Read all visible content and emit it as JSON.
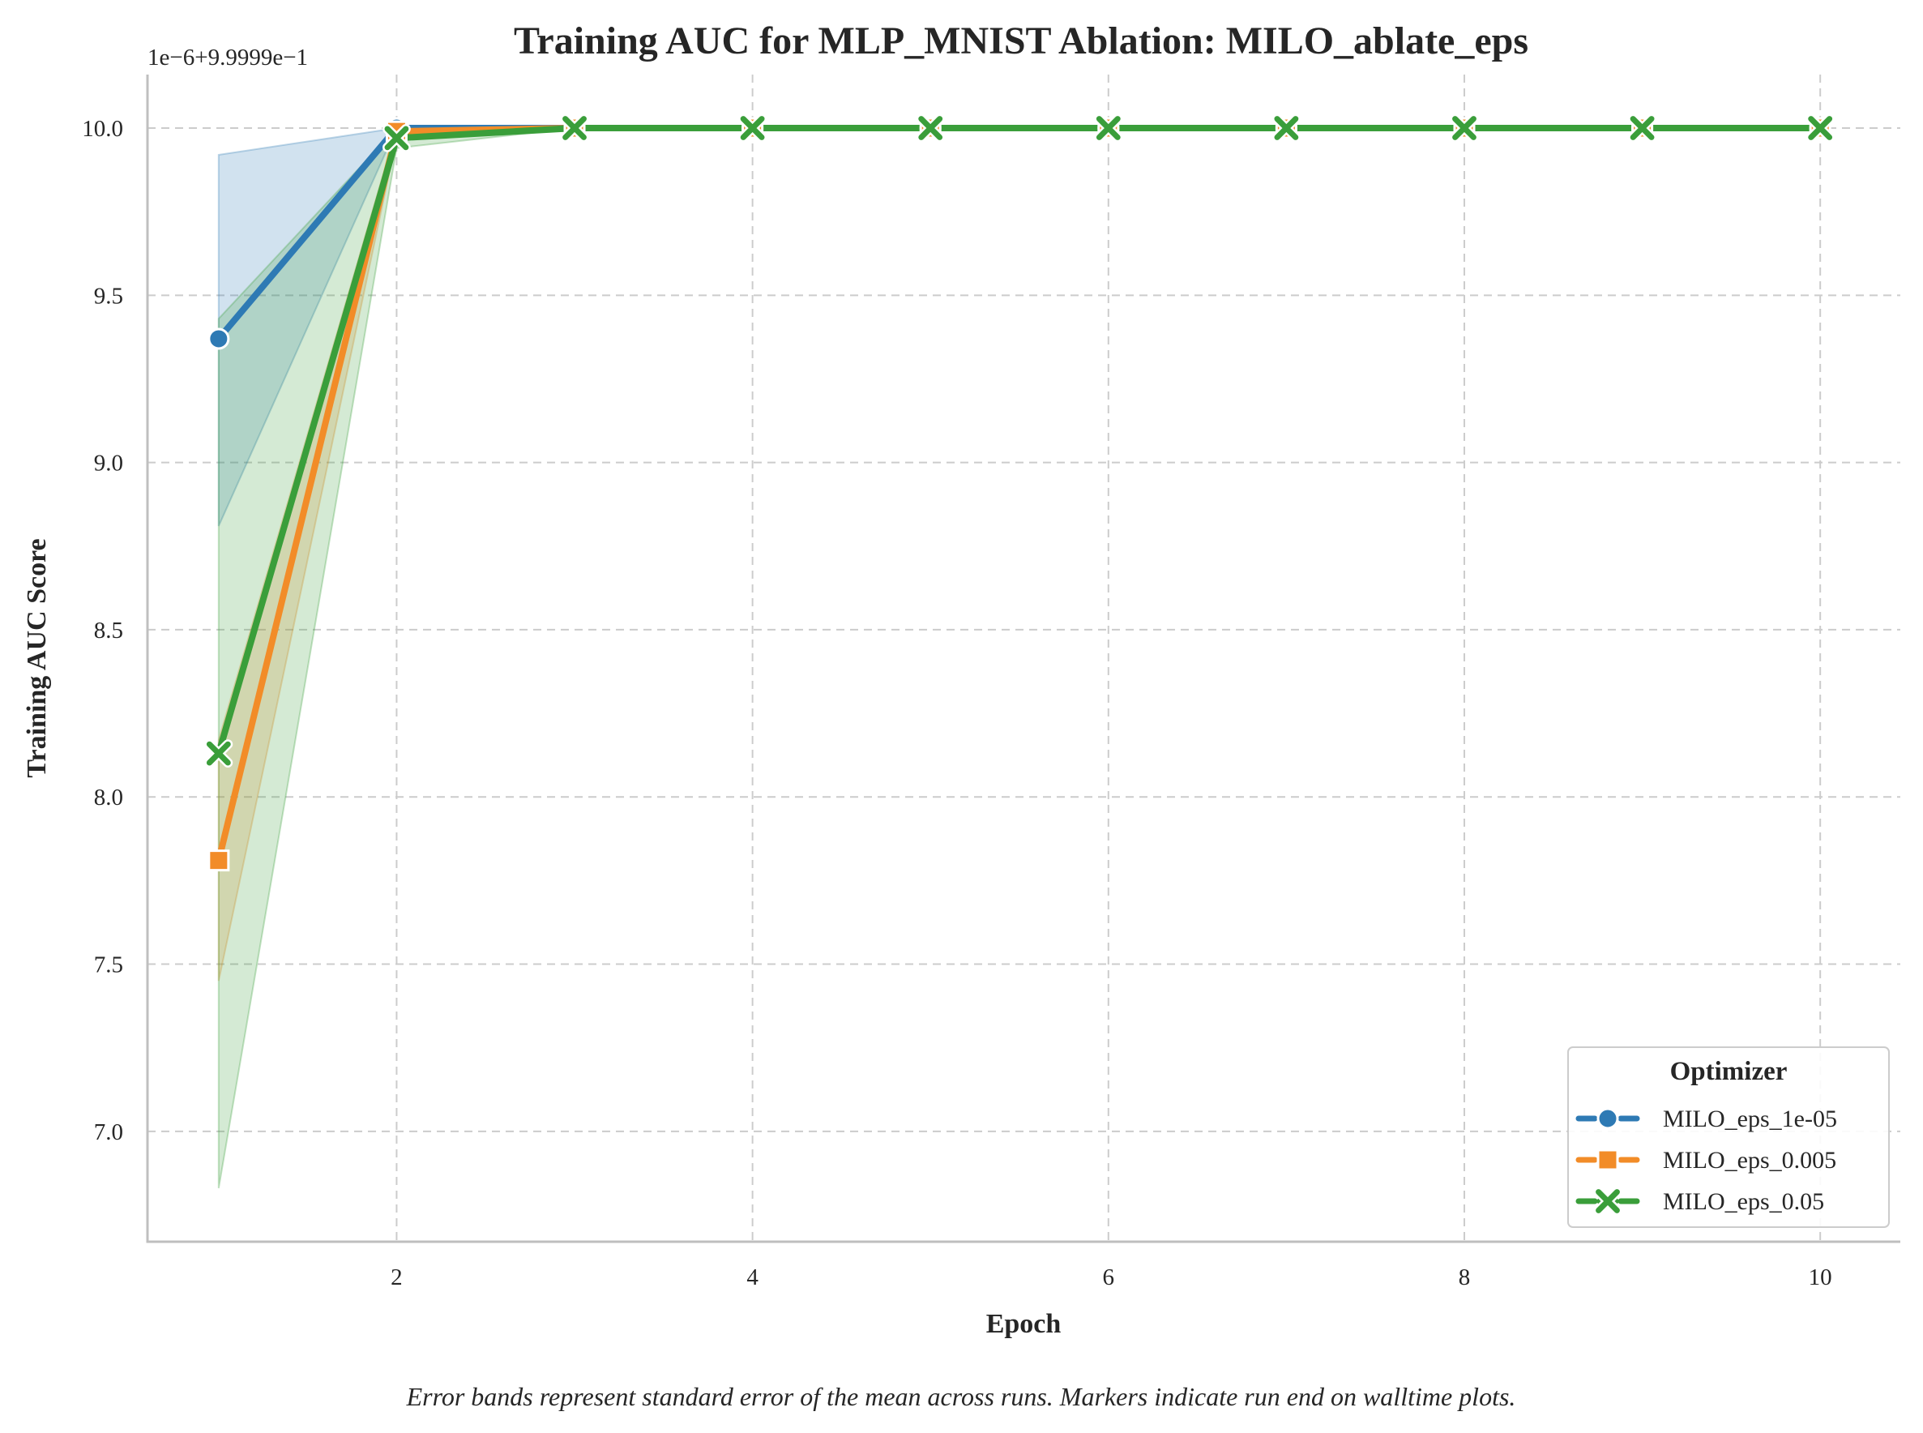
{
  "chart_data": {
    "type": "line",
    "title": "Training AUC for MLP_MNIST Ablation: MILO_ablate_eps",
    "xlabel": "Epoch",
    "ylabel": "Training AUC Score",
    "y_offset_label": "1e−6+9.9999e−1",
    "caption": "Error bands represent standard error of the mean across runs. Markers indicate run end on walltime plots.",
    "xlim": [
      0.6,
      10.45
    ],
    "ylim": [
      6.67,
      10.16
    ],
    "x_ticks": [
      2,
      4,
      6,
      8,
      10
    ],
    "x_tick_labels": [
      "2",
      "4",
      "6",
      "8",
      "10"
    ],
    "y_ticks": [
      7.0,
      7.5,
      8.0,
      8.5,
      9.0,
      9.5,
      10.0
    ],
    "y_tick_labels": [
      "7.0",
      "7.5",
      "8.0",
      "8.5",
      "9.0",
      "9.5",
      "10.0"
    ],
    "grid": true,
    "legend": {
      "title": "Optimizer",
      "placement": "lower-right"
    },
    "x": [
      1,
      2,
      3,
      4,
      5,
      6,
      7,
      8,
      9,
      10
    ],
    "series": [
      {
        "name": "MILO_eps_1e-05",
        "color": "#2e7ab4",
        "marker": "circle",
        "values": [
          9.37,
          10.0,
          10.0,
          10.0,
          10.0,
          10.0,
          10.0,
          10.0,
          10.0,
          10.0
        ],
        "band_low": [
          8.81,
          10.0,
          10.0,
          10.0,
          10.0,
          10.0,
          10.0,
          10.0,
          10.0,
          10.0
        ],
        "band_high": [
          9.92,
          10.0,
          10.0,
          10.0,
          10.0,
          10.0,
          10.0,
          10.0,
          10.0,
          10.0
        ]
      },
      {
        "name": "MILO_eps_0.005",
        "color": "#f28c28",
        "marker": "square",
        "values": [
          7.81,
          9.99,
          10.0,
          10.0,
          10.0,
          10.0,
          10.0,
          10.0,
          10.0,
          10.0
        ],
        "band_low": [
          7.45,
          9.97,
          10.0,
          10.0,
          10.0,
          10.0,
          10.0,
          10.0,
          10.0,
          10.0
        ],
        "band_high": [
          8.17,
          10.0,
          10.0,
          10.0,
          10.0,
          10.0,
          10.0,
          10.0,
          10.0,
          10.0
        ]
      },
      {
        "name": "MILO_eps_0.05",
        "color": "#3a9e3a",
        "marker": "x",
        "values": [
          8.13,
          9.97,
          10.0,
          10.0,
          10.0,
          10.0,
          10.0,
          10.0,
          10.0,
          10.0
        ],
        "band_low": [
          6.83,
          9.94,
          10.0,
          10.0,
          10.0,
          10.0,
          10.0,
          10.0,
          10.0,
          10.0
        ],
        "band_high": [
          9.43,
          10.0,
          10.0,
          10.0,
          10.0,
          10.0,
          10.0,
          10.0,
          10.0,
          10.0
        ]
      }
    ]
  }
}
